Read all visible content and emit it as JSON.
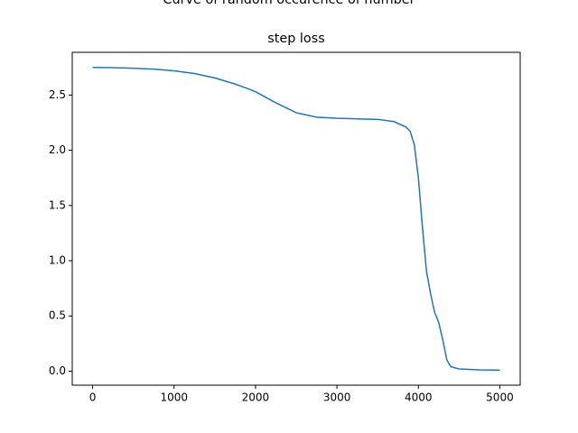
{
  "chart_data": {
    "type": "line",
    "suptitle": "Curve of random occurence of number",
    "title": "step loss",
    "x": [
      0,
      250,
      500,
      750,
      1000,
      1250,
      1500,
      1750,
      1900,
      2000,
      2250,
      2500,
      2750,
      3000,
      3250,
      3500,
      3700,
      3850,
      3900,
      3950,
      4000,
      4050,
      4100,
      4150,
      4200,
      4250,
      4300,
      4350,
      4400,
      4500,
      4750,
      5000
    ],
    "series": [
      {
        "color": "#1f77b4",
        "values": [
          2.75,
          2.748,
          2.743,
          2.735,
          2.72,
          2.695,
          2.655,
          2.6,
          2.56,
          2.53,
          2.43,
          2.34,
          2.3,
          2.29,
          2.285,
          2.28,
          2.26,
          2.21,
          2.17,
          2.05,
          1.75,
          1.3,
          0.9,
          0.7,
          0.53,
          0.44,
          0.28,
          0.1,
          0.04,
          0.02,
          0.012,
          0.01
        ]
      }
    ],
    "xlim": [
      -250,
      5250
    ],
    "ylim": [
      -0.127,
      2.887
    ],
    "xticks": [
      0,
      1000,
      2000,
      3000,
      4000,
      5000
    ],
    "yticks": [
      {
        "value": 0,
        "label": "0.0"
      },
      0.5,
      {
        "value": 1,
        "label": "1.0"
      },
      1.5,
      {
        "value": 2,
        "label": "2.0"
      },
      2.5
    ],
    "grid": false
  }
}
